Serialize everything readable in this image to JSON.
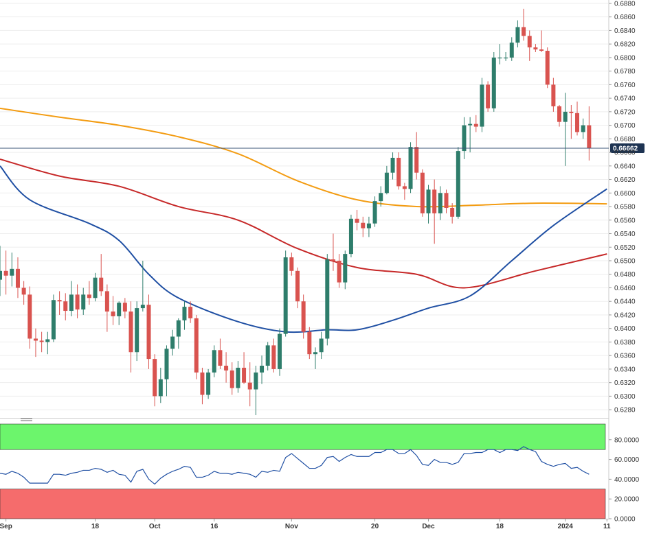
{
  "chart_data": [
    {
      "type": "candlestick",
      "title": "",
      "colors": {
        "up": "#2e7d6b",
        "down": "#d9534f",
        "sma_short": "#1f4fa3",
        "sma_mid": "#c62828",
        "sma_long": "#f39c12",
        "price_line": "#3b5577"
      },
      "y_range": [
        0.627,
        0.6885
      ],
      "y_ticks": [
        "0.6880",
        "0.6860",
        "0.6840",
        "0.6820",
        "0.6800",
        "0.6780",
        "0.6760",
        "0.6740",
        "0.6720",
        "0.6700",
        "0.6680",
        "0.6660",
        "0.6640",
        "0.6620",
        "0.6600",
        "0.6580",
        "0.6560",
        "0.6540",
        "0.6520",
        "0.6500",
        "0.6480",
        "0.6460",
        "0.6440",
        "0.6420",
        "0.6400",
        "0.6380",
        "0.6360",
        "0.6340",
        "0.6320",
        "0.6300",
        "0.6280"
      ],
      "x_labels": [
        {
          "label": "Sep",
          "index": 1
        },
        {
          "label": "18",
          "index": 16
        },
        {
          "label": "Oct",
          "index": 26
        },
        {
          "label": "16",
          "index": 36
        },
        {
          "label": "Nov",
          "index": 49
        },
        {
          "label": "20",
          "index": 63
        },
        {
          "label": "Dec",
          "index": 72
        },
        {
          "label": "18",
          "index": 84
        },
        {
          "label": "2024",
          "index": 95
        },
        {
          "label": "11",
          "index": 102
        }
      ],
      "current_price": {
        "value": 0.66662,
        "label": "0.66662"
      },
      "candles": [
        [
          0.6472,
          0.6522,
          0.6448,
          0.6485
        ],
        [
          0.6485,
          0.6515,
          0.645,
          0.6478
        ],
        [
          0.6478,
          0.6512,
          0.6462,
          0.6488
        ],
        [
          0.6488,
          0.6505,
          0.6445,
          0.646
        ],
        [
          0.646,
          0.647,
          0.6435,
          0.645
        ],
        [
          0.645,
          0.6462,
          0.637,
          0.6385
        ],
        [
          0.6385,
          0.64,
          0.6358,
          0.6382
        ],
        [
          0.6382,
          0.6395,
          0.6365,
          0.638
        ],
        [
          0.638,
          0.6395,
          0.6362,
          0.6384
        ],
        [
          0.6384,
          0.645,
          0.638,
          0.6442
        ],
        [
          0.6442,
          0.6455,
          0.642,
          0.644
        ],
        [
          0.644,
          0.6452,
          0.6412,
          0.6426
        ],
        [
          0.6426,
          0.647,
          0.6418,
          0.645
        ],
        [
          0.645,
          0.6465,
          0.6415,
          0.6428
        ],
        [
          0.6428,
          0.646,
          0.642,
          0.645
        ],
        [
          0.645,
          0.647,
          0.6435,
          0.6445
        ],
        [
          0.6445,
          0.6482,
          0.644,
          0.6475
        ],
        [
          0.6475,
          0.651,
          0.6448,
          0.6455
        ],
        [
          0.6455,
          0.6465,
          0.6395,
          0.6425
        ],
        [
          0.6425,
          0.6448,
          0.6405,
          0.6418
        ],
        [
          0.6418,
          0.644,
          0.6405,
          0.6438
        ],
        [
          0.6438,
          0.6445,
          0.6415,
          0.6425
        ],
        [
          0.6425,
          0.644,
          0.6335,
          0.6365
        ],
        [
          0.6365,
          0.644,
          0.6352,
          0.643
        ],
        [
          0.643,
          0.65,
          0.6425,
          0.6435
        ],
        [
          0.6435,
          0.645,
          0.634,
          0.6355
        ],
        [
          0.6355,
          0.6362,
          0.6285,
          0.63
        ],
        [
          0.63,
          0.6342,
          0.629,
          0.6325
        ],
        [
          0.6325,
          0.6375,
          0.63,
          0.637
        ],
        [
          0.637,
          0.6398,
          0.636,
          0.6388
        ],
        [
          0.6388,
          0.6415,
          0.637,
          0.6412
        ],
        [
          0.6412,
          0.644,
          0.6398,
          0.6432
        ],
        [
          0.6432,
          0.644,
          0.6408,
          0.6415
        ],
        [
          0.6415,
          0.642,
          0.6325,
          0.6335
        ],
        [
          0.6335,
          0.6342,
          0.6288,
          0.6302
        ],
        [
          0.6302,
          0.634,
          0.6296,
          0.6335
        ],
        [
          0.6335,
          0.6375,
          0.6328,
          0.6368
        ],
        [
          0.6368,
          0.6385,
          0.634,
          0.6345
        ],
        [
          0.6345,
          0.6365,
          0.632,
          0.6338
        ],
        [
          0.6338,
          0.635,
          0.6302,
          0.6312
        ],
        [
          0.6312,
          0.6352,
          0.6305,
          0.6342
        ],
        [
          0.6342,
          0.6365,
          0.6318,
          0.632
        ],
        [
          0.632,
          0.635,
          0.6285,
          0.631
        ],
        [
          0.631,
          0.6345,
          0.6272,
          0.6335
        ],
        [
          0.6335,
          0.636,
          0.6318,
          0.6345
        ],
        [
          0.6345,
          0.638,
          0.6338,
          0.6375
        ],
        [
          0.6375,
          0.6385,
          0.6335,
          0.634
        ],
        [
          0.634,
          0.64,
          0.633,
          0.6392
        ],
        [
          0.6392,
          0.6515,
          0.6388,
          0.6505
        ],
        [
          0.6505,
          0.6512,
          0.6478,
          0.6485
        ],
        [
          0.6485,
          0.649,
          0.643,
          0.644
        ],
        [
          0.644,
          0.645,
          0.6385,
          0.6395
        ],
        [
          0.6395,
          0.6402,
          0.6355,
          0.6362
        ],
        [
          0.6362,
          0.6372,
          0.634,
          0.6365
        ],
        [
          0.6365,
          0.6395,
          0.6355,
          0.6385
        ],
        [
          0.6385,
          0.651,
          0.6375,
          0.6502
        ],
        [
          0.6502,
          0.654,
          0.6485,
          0.65
        ],
        [
          0.65,
          0.651,
          0.646,
          0.6468
        ],
        [
          0.6468,
          0.6515,
          0.6458,
          0.651
        ],
        [
          0.651,
          0.6568,
          0.6505,
          0.6562
        ],
        [
          0.6562,
          0.6575,
          0.6545,
          0.6556
        ],
        [
          0.6556,
          0.6565,
          0.6535,
          0.6548
        ],
        [
          0.6548,
          0.6565,
          0.6535,
          0.6555
        ],
        [
          0.6555,
          0.6595,
          0.655,
          0.6588
        ],
        [
          0.6588,
          0.661,
          0.658,
          0.66
        ],
        [
          0.66,
          0.664,
          0.6598,
          0.663
        ],
        [
          0.663,
          0.666,
          0.662,
          0.6652
        ],
        [
          0.6652,
          0.666,
          0.6605,
          0.661
        ],
        [
          0.661,
          0.6615,
          0.659,
          0.6606
        ],
        [
          0.6606,
          0.6675,
          0.66,
          0.6668
        ],
        [
          0.6668,
          0.669,
          0.662,
          0.663
        ],
        [
          0.663,
          0.6635,
          0.6565,
          0.657
        ],
        [
          0.657,
          0.6612,
          0.6555,
          0.6605
        ],
        [
          0.6605,
          0.662,
          0.6525,
          0.657
        ],
        [
          0.657,
          0.661,
          0.656,
          0.66
        ],
        [
          0.66,
          0.6605,
          0.657,
          0.6578
        ],
        [
          0.6578,
          0.6585,
          0.6555,
          0.6565
        ],
        [
          0.6565,
          0.6668,
          0.6562,
          0.6662
        ],
        [
          0.6662,
          0.6712,
          0.665,
          0.67
        ],
        [
          0.67,
          0.6712,
          0.666,
          0.6702
        ],
        [
          0.6702,
          0.6715,
          0.669,
          0.6698
        ],
        [
          0.6698,
          0.677,
          0.669,
          0.676
        ],
        [
          0.676,
          0.6765,
          0.672,
          0.6725
        ],
        [
          0.6725,
          0.6808,
          0.672,
          0.68
        ],
        [
          0.68,
          0.682,
          0.679,
          0.68
        ],
        [
          0.68,
          0.6808,
          0.6795,
          0.68
        ],
        [
          0.68,
          0.683,
          0.6795,
          0.6822
        ],
        [
          0.6822,
          0.6855,
          0.6815,
          0.6845
        ],
        [
          0.6845,
          0.6872,
          0.6825,
          0.6832
        ],
        [
          0.6832,
          0.684,
          0.6795,
          0.6815
        ],
        [
          0.6815,
          0.682,
          0.6808,
          0.6812
        ],
        [
          0.6812,
          0.684,
          0.6808,
          0.681
        ],
        [
          0.681,
          0.6815,
          0.6755,
          0.676
        ],
        [
          0.676,
          0.677,
          0.672,
          0.6728
        ],
        [
          0.6728,
          0.673,
          0.6698,
          0.6705
        ],
        [
          0.6705,
          0.6748,
          0.664,
          0.672
        ],
        [
          0.672,
          0.673,
          0.668,
          0.6718
        ],
        [
          0.6718,
          0.6735,
          0.6685,
          0.669
        ],
        [
          0.669,
          0.671,
          0.668,
          0.67
        ],
        [
          0.67,
          0.6728,
          0.6648,
          0.6666
        ]
      ],
      "sma_long": [
        [
          0,
          0.6725
        ],
        [
          10,
          0.6712
        ],
        [
          20,
          0.67
        ],
        [
          30,
          0.6683
        ],
        [
          40,
          0.6658
        ],
        [
          50,
          0.6618
        ],
        [
          60,
          0.659
        ],
        [
          70,
          0.658
        ],
        [
          80,
          0.6582
        ],
        [
          90,
          0.6585
        ],
        [
          102,
          0.6584
        ]
      ],
      "sma_mid": [
        [
          0,
          0.665
        ],
        [
          10,
          0.6625
        ],
        [
          20,
          0.661
        ],
        [
          30,
          0.658
        ],
        [
          40,
          0.656
        ],
        [
          50,
          0.6518
        ],
        [
          60,
          0.649
        ],
        [
          70,
          0.648
        ],
        [
          78,
          0.646
        ],
        [
          90,
          0.6485
        ],
        [
          102,
          0.651
        ]
      ],
      "sma_short": [
        [
          0,
          0.664
        ],
        [
          5,
          0.659
        ],
        [
          15,
          0.6555
        ],
        [
          20,
          0.653
        ],
        [
          25,
          0.648
        ],
        [
          30,
          0.6445
        ],
        [
          40,
          0.641
        ],
        [
          48,
          0.6395
        ],
        [
          55,
          0.6398
        ],
        [
          60,
          0.6398
        ],
        [
          66,
          0.6412
        ],
        [
          72,
          0.643
        ],
        [
          79,
          0.6448
        ],
        [
          86,
          0.65
        ],
        [
          93,
          0.6552
        ],
        [
          102,
          0.6606
        ]
      ]
    },
    {
      "type": "line",
      "title": "",
      "y_range": [
        0,
        100
      ],
      "y_ticks": [
        "80.0000",
        "60.0000",
        "40.0000",
        "20.0000",
        "0.0000"
      ],
      "overbought": 70,
      "oversold": 30,
      "colors": {
        "line": "#1f4fa3",
        "overbought_zone": "#6cf56c",
        "oversold_zone": "#f56c6c"
      },
      "values": [
        46,
        45,
        48,
        46,
        42,
        36,
        36,
        36,
        36,
        45,
        45,
        44,
        46,
        47,
        49,
        49,
        51,
        50,
        47,
        49,
        45,
        44,
        37,
        48,
        50,
        40,
        35,
        41,
        45,
        48,
        50,
        53,
        52,
        42,
        42,
        44,
        48,
        46,
        46,
        45,
        47,
        46,
        45,
        42,
        48,
        47,
        49,
        48,
        62,
        66,
        61,
        56,
        51,
        51,
        54,
        62,
        63,
        58,
        62,
        65,
        63,
        63,
        63,
        67,
        67,
        70,
        70,
        66,
        66,
        70,
        64,
        55,
        54,
        60,
        57,
        57,
        55,
        57,
        66,
        66,
        67,
        67,
        70,
        70,
        67,
        70,
        70,
        69,
        73,
        70,
        68,
        58,
        55,
        53,
        55,
        56,
        51,
        52,
        48,
        45
      ]
    }
  ]
}
